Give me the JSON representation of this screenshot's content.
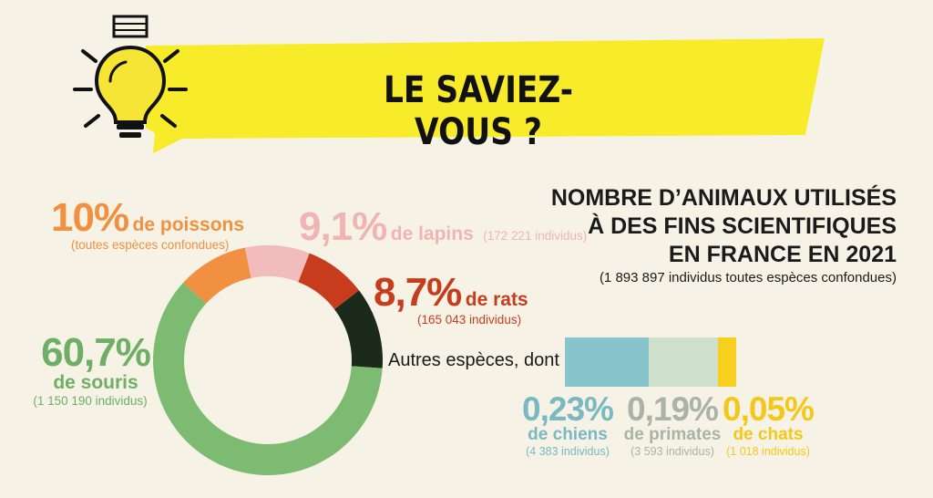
{
  "banner": {
    "title": "LE SAVIEZ-VOUS ?"
  },
  "heading": {
    "line1": "NOMBRE D’ANIMAUX UTILISÉS",
    "line2": "À DES FINS SCIENTIFIQUES",
    "line3": "EN FRANCE EN 2021",
    "subtitle": "(1 893 897 individus toutes espèces confondues)"
  },
  "labels": {
    "poissons": {
      "pct": "10%",
      "name": "de poissons",
      "detail": "(toutes espèces confondues)"
    },
    "lapins": {
      "pct": "9,1%",
      "name": "de lapins",
      "detail": "(172 221 individus)"
    },
    "rats": {
      "pct": "8,7%",
      "name": "de rats",
      "detail": "(165 043 individus)"
    },
    "souris": {
      "pct": "60,7%",
      "name": "de souris",
      "detail": "(1 150 190 individus)"
    },
    "autres": {
      "name": "Autres espèces, dont"
    },
    "chiens": {
      "pct": "0,23%",
      "name": "de chiens",
      "detail": "(4 383 individus)"
    },
    "primates": {
      "pct": "0,19%",
      "name": "de primates",
      "detail": "(3 593 individus)"
    },
    "chats": {
      "pct": "0,05%",
      "name": "de chats",
      "detail": "(1 018 individus)"
    }
  },
  "colors": {
    "poissons": "#f09040",
    "lapins": "#f2bcbc",
    "rats": "#c83c1e",
    "autres": "#1b2a1b",
    "souris": "#7dba72",
    "chiens": "#88c4cc",
    "primates": "#cfe0cc",
    "chats": "#f7cf1e",
    "banner": "#f8ec2a"
  },
  "chart_data": [
    {
      "type": "pie",
      "slices": [
        {
          "label": "de poissons",
          "value": 10,
          "color": "#f09040"
        },
        {
          "label": "de lapins",
          "value": 9.1,
          "color": "#f2bcbc"
        },
        {
          "label": "de rats",
          "value": 8.7,
          "color": "#c83c1e"
        },
        {
          "label": "Autres espèces, dont",
          "value": 11.5,
          "color": "#1b2a1b"
        },
        {
          "label": "de souris",
          "value": 60.7,
          "color": "#7dba72"
        }
      ]
    },
    {
      "type": "bar",
      "orientation": "horizontal-stacked",
      "categories": [
        "de chiens",
        "de primates",
        "de chats"
      ],
      "values": [
        0.23,
        0.19,
        0.05
      ],
      "colors": [
        "#88c4cc",
        "#cfe0cc",
        "#f7cf1e"
      ]
    }
  ]
}
